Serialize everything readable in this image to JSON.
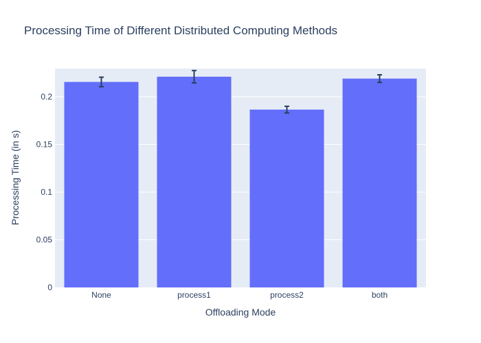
{
  "chart_data": {
    "type": "bar",
    "title": "Processing Time of Different Distributed Computing Methods",
    "xlabel": "Offloading Mode",
    "ylabel": "Processing Time (in s)",
    "categories": [
      "None",
      "process1",
      "process2",
      "both"
    ],
    "values": [
      0.2155,
      0.221,
      0.1865,
      0.219
    ],
    "error": [
      0.005,
      0.0065,
      0.0035,
      0.004
    ],
    "ylim": [
      0,
      0.2295
    ],
    "yticks": [
      0,
      0.05,
      0.1,
      0.15,
      0.2
    ],
    "ytick_labels": [
      "0",
      "0.05",
      "0.1",
      "0.15",
      "0.2"
    ],
    "grid": true,
    "colors": {
      "bar": "#636efa",
      "plot_bg": "#e5ecf6",
      "grid": "#ffffff",
      "error_bar": "#2a3f5f",
      "text": "#2a3f5f"
    }
  }
}
